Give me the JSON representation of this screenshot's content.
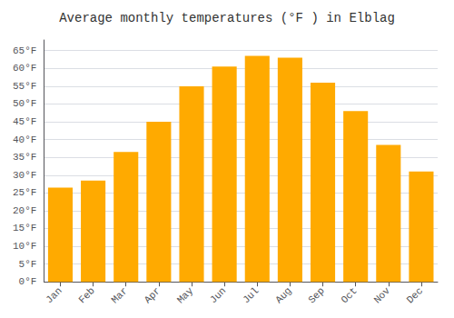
{
  "chart_data": {
    "type": "bar",
    "title": "Average monthly temperatures (°F ) in Elblag",
    "categories": [
      "Jan",
      "Feb",
      "Mar",
      "Apr",
      "May",
      "Jun",
      "Jul",
      "Aug",
      "Sep",
      "Oct",
      "Nov",
      "Dec"
    ],
    "values": [
      26.5,
      28.5,
      36.5,
      45.0,
      55.0,
      60.5,
      63.5,
      63.0,
      56.0,
      48.0,
      38.5,
      31.0
    ],
    "color": "#FFAA00",
    "ylim": [
      0,
      68
    ],
    "yticks": [
      {
        "value": 0,
        "label": "0°F"
      },
      {
        "value": 5,
        "label": "5°F"
      },
      {
        "value": 10,
        "label": "10°F"
      },
      {
        "value": 15,
        "label": "15°F"
      },
      {
        "value": 20,
        "label": "20°F"
      },
      {
        "value": 25,
        "label": "25°F"
      },
      {
        "value": 30,
        "label": "30°F"
      },
      {
        "value": 35,
        "label": "35°F"
      },
      {
        "value": 40,
        "label": "40°F"
      },
      {
        "value": 45,
        "label": "45°F"
      },
      {
        "value": 50,
        "label": "50°F"
      },
      {
        "value": 55,
        "label": "55°F"
      },
      {
        "value": 60,
        "label": "60°F"
      },
      {
        "value": 65,
        "label": "65°F"
      }
    ],
    "grid": true
  }
}
